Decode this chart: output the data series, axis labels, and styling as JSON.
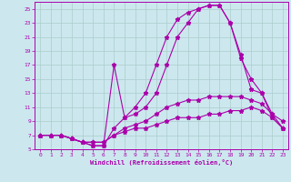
{
  "xlabel": "Windchill (Refroidissement éolien,°C)",
  "background_color": "#cce8ee",
  "grid_color": "#aacccc",
  "line_color": "#aa00aa",
  "xlim": [
    -0.5,
    23.5
  ],
  "ylim": [
    5,
    26
  ],
  "yticks": [
    5,
    7,
    9,
    11,
    13,
    15,
    17,
    19,
    21,
    23,
    25
  ],
  "xticks": [
    0,
    1,
    2,
    3,
    4,
    5,
    6,
    7,
    8,
    9,
    10,
    11,
    12,
    13,
    14,
    15,
    16,
    17,
    18,
    19,
    20,
    21,
    22,
    23
  ],
  "curve1_x": [
    0,
    1,
    2,
    3,
    4,
    5,
    6,
    7,
    8,
    9,
    10,
    11,
    12,
    13,
    14,
    15,
    16,
    17,
    18,
    19,
    20,
    21,
    22,
    23
  ],
  "curve1_y": [
    7,
    7,
    7,
    6.5,
    6,
    6,
    6,
    7,
    7.5,
    8,
    8,
    8.5,
    9,
    9.5,
    9.5,
    9.5,
    10,
    10,
    10.5,
    10.5,
    11,
    10.5,
    9.5,
    8
  ],
  "curve2_x": [
    0,
    1,
    2,
    3,
    4,
    5,
    6,
    7,
    8,
    9,
    10,
    11,
    12,
    13,
    14,
    15,
    16,
    17,
    18,
    19,
    20,
    21,
    22,
    23
  ],
  "curve2_y": [
    7,
    7,
    7,
    6.5,
    6,
    6,
    6,
    7,
    8,
    8.5,
    9,
    10,
    11,
    11.5,
    12,
    12,
    12.5,
    12.5,
    12.5,
    12.5,
    12,
    11.5,
    10,
    8
  ],
  "curve3_x": [
    0,
    1,
    2,
    3,
    4,
    5,
    6,
    7,
    8,
    9,
    10,
    11,
    12,
    13,
    14,
    15,
    16,
    17,
    18,
    19,
    20,
    21,
    22,
    23
  ],
  "curve3_y": [
    7,
    7,
    7,
    6.5,
    6,
    5.5,
    5.5,
    17,
    9.5,
    10,
    11,
    13,
    17,
    21,
    23,
    25,
    25.5,
    25.5,
    23,
    18,
    15,
    13,
    10,
    9
  ],
  "curve4_x": [
    0,
    1,
    2,
    3,
    4,
    5,
    6,
    7,
    8,
    9,
    10,
    11,
    12,
    13,
    14,
    15,
    16,
    17,
    18,
    19,
    20,
    21,
    22,
    23
  ],
  "curve4_y": [
    7,
    7,
    7,
    6.5,
    6,
    5.5,
    5.5,
    8,
    9.5,
    11,
    13,
    17,
    21,
    23.5,
    24.5,
    25,
    25.5,
    25.5,
    23,
    18.5,
    13.5,
    13,
    9.5,
    8
  ]
}
